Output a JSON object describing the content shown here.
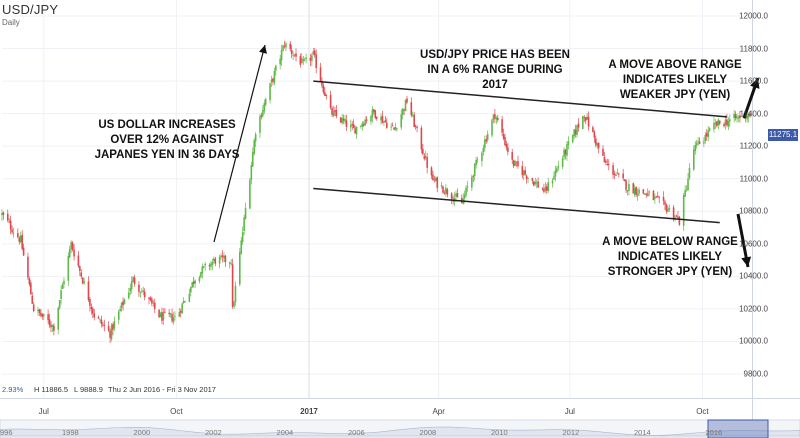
{
  "header": {
    "symbol": "USD/JPY",
    "interval": "Daily"
  },
  "stats": {
    "change": "2.93%",
    "high": "H 11886.5",
    "low": "L 9888.9",
    "range": "Thu 2 Jun 2016 - Fri 3 Nov 2017"
  },
  "last_price": "11275.1",
  "annotations": {
    "rise": "US DOLLAR INCREASES OVER 12% AGAINST JAPANES YEN IN 36 DAYS",
    "range": "USD/JPY PRICE HAS BEEN IN A 6% RANGE DURING 2017",
    "above": "A MOVE ABOVE RANGE INDICATES LIKELY WEAKER JPY (YEN)",
    "below": "A MOVE BELOW RANGE INDICATES LIKELY STRONGER JPY (YEN)"
  },
  "navigator_labels": [
    "996",
    "1998",
    "2000",
    "2002",
    "2004",
    "2006",
    "2008",
    "2010",
    "2012",
    "2014",
    "2016"
  ],
  "colors": {
    "up": "#5fb848",
    "down": "#e0474c",
    "trend": "#222222",
    "highlight": "#3d5aa8"
  },
  "chart_data": {
    "type": "candlestick",
    "title": "USD/JPY",
    "x_ticks": [
      "Jul",
      "Oct",
      "2017",
      "Apr",
      "Jul",
      "Oct"
    ],
    "y_ticks": [
      "12000.0",
      "11800.0",
      "11600.0",
      "11400.0",
      "11200.0",
      "11000.0",
      "10800.0",
      "10600.0",
      "10400.0",
      "10200.0",
      "10000.0",
      "9800.0"
    ],
    "ylim": [
      9700,
      12050
    ],
    "grid": true,
    "close_path": [
      {
        "date": "2016-06-02",
        "close": 10780
      },
      {
        "date": "2016-06-15",
        "close": 10620
      },
      {
        "date": "2016-06-24",
        "close": 10200
      },
      {
        "date": "2016-07-08",
        "close": 10090
      },
      {
        "date": "2016-07-20",
        "close": 10600
      },
      {
        "date": "2016-08-05",
        "close": 10160
      },
      {
        "date": "2016-08-16",
        "close": 10050
      },
      {
        "date": "2016-09-01",
        "close": 10380
      },
      {
        "date": "2016-09-20",
        "close": 10150
      },
      {
        "date": "2016-10-01",
        "close": 10150
      },
      {
        "date": "2016-10-15",
        "close": 10410
      },
      {
        "date": "2016-10-28",
        "close": 10500
      },
      {
        "date": "2016-11-08",
        "close": 10500
      },
      {
        "date": "2016-11-09",
        "close": 10190
      },
      {
        "date": "2016-11-25",
        "close": 11300
      },
      {
        "date": "2016-12-15",
        "close": 11830
      },
      {
        "date": "2016-12-28",
        "close": 11700
      },
      {
        "date": "2017-01-04",
        "close": 11760
      },
      {
        "date": "2017-01-16",
        "close": 11410
      },
      {
        "date": "2017-02-01",
        "close": 11300
      },
      {
        "date": "2017-02-15",
        "close": 11410
      },
      {
        "date": "2017-03-01",
        "close": 11300
      },
      {
        "date": "2017-03-10",
        "close": 11480
      },
      {
        "date": "2017-03-27",
        "close": 11000
      },
      {
        "date": "2017-04-17",
        "close": 10850
      },
      {
        "date": "2017-05-10",
        "close": 11400
      },
      {
        "date": "2017-05-22",
        "close": 11100
      },
      {
        "date": "2017-06-14",
        "close": 10920
      },
      {
        "date": "2017-07-11",
        "close": 11400
      },
      {
        "date": "2017-07-25",
        "close": 11100
      },
      {
        "date": "2017-08-10",
        "close": 10950
      },
      {
        "date": "2017-08-25",
        "close": 10900
      },
      {
        "date": "2017-09-08",
        "close": 10810
      },
      {
        "date": "2017-09-15",
        "close": 10740
      },
      {
        "date": "2017-09-25",
        "close": 11180
      },
      {
        "date": "2017-10-10",
        "close": 11330
      },
      {
        "date": "2017-11-03",
        "close": 11400
      }
    ],
    "trendlines": [
      {
        "name": "resistance",
        "from": {
          "date": "2017-01-04",
          "y": 11600
        },
        "to": {
          "date": "2017-10-18",
          "y": 11380
        }
      },
      {
        "name": "support",
        "from": {
          "date": "2017-01-04",
          "y": 10940
        },
        "to": {
          "date": "2017-10-13",
          "y": 10730
        }
      }
    ]
  }
}
